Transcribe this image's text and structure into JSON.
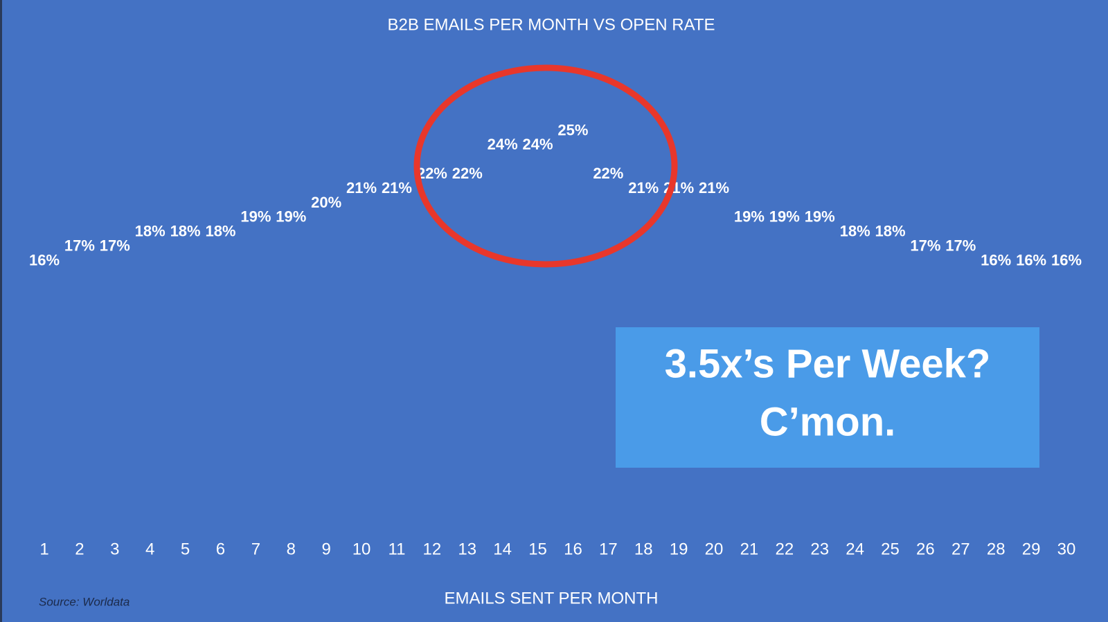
{
  "chart_data": {
    "type": "lollipop",
    "title": "B2B EMAILS PER MONTH VS OPEN RATE",
    "x_label": "EMAILS SENT PER MONTH",
    "source": "Source: Worldata",
    "annotation": [
      "3.5x’s Per Week?",
      "C’mon."
    ],
    "categories": [
      "1",
      "2",
      "3",
      "4",
      "5",
      "6",
      "7",
      "8",
      "9",
      "10",
      "11",
      "12",
      "13",
      "14",
      "15",
      "16",
      "17",
      "18",
      "19",
      "20",
      "21",
      "22",
      "23",
      "24",
      "25",
      "26",
      "27",
      "28",
      "29",
      "30"
    ],
    "values": [
      16,
      17,
      17,
      18,
      18,
      18,
      19,
      19,
      20,
      21,
      21,
      22,
      22,
      24,
      24,
      25,
      22,
      21,
      21,
      21,
      19,
      19,
      19,
      18,
      18,
      17,
      17,
      16,
      16,
      16
    ],
    "value_labels": [
      "16%",
      "17%",
      "17%",
      "18%",
      "18%",
      "18%",
      "19%",
      "19%",
      "20%",
      "21%",
      "21%",
      "22%",
      "22%",
      "24%",
      "24%",
      "25%",
      "22%",
      "21%",
      "21%",
      "21%",
      "19%",
      "19%",
      "19%",
      "18%",
      "18%",
      "17%",
      "17%",
      "16%",
      "16%",
      "16%"
    ],
    "color": "#dfe6f5"
  }
}
